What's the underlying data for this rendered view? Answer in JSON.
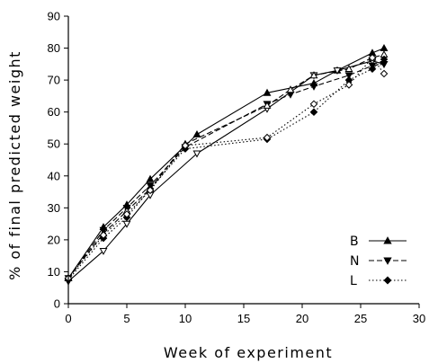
{
  "chart_data": {
    "type": "line",
    "xlabel": "Week of experiment",
    "ylabel": "% of final predicted weight",
    "xlim": [
      0,
      30
    ],
    "ylim": [
      0,
      90
    ],
    "x_ticks": [
      0,
      5,
      10,
      15,
      20,
      25,
      30
    ],
    "y_ticks": [
      0,
      10,
      20,
      30,
      40,
      50,
      60,
      70,
      80,
      90
    ],
    "grid": false,
    "legend_position": "lower-right",
    "series": [
      {
        "name": "B",
        "style": "solid",
        "markers": [
          {
            "shape": "triangle-up",
            "fill": "filled",
            "x": [
              0,
              3,
              5,
              7,
              11,
              17,
              21,
              23,
              26,
              27
            ],
            "y": [
              8,
              24,
              31,
              39,
              53,
              66,
              69,
              73,
              78.5,
              80
            ]
          },
          {
            "shape": "triangle-down",
            "fill": "open",
            "x": [
              0,
              3,
              5,
              7,
              11,
              17,
              21,
              23,
              26,
              27
            ],
            "y": [
              7,
              16.5,
              25,
              34,
              47,
              61,
              71.5,
              73,
              76,
              75
            ]
          }
        ]
      },
      {
        "name": "N",
        "style": "dashed",
        "markers": [
          {
            "shape": "triangle-down",
            "fill": "filled",
            "x": [
              0,
              3,
              5,
              7,
              10,
              17,
              19,
              21,
              24,
              26,
              27
            ],
            "y": [
              8,
              23,
              30,
              37,
              49,
              62.5,
              65.5,
              68,
              71.5,
              74.5,
              75
            ]
          },
          {
            "shape": "triangle-up",
            "fill": "open",
            "x": [
              0,
              3,
              5,
              7,
              10,
              17,
              19,
              21,
              24,
              26,
              27
            ],
            "y": [
              8,
              22,
              29,
              36,
              50,
              62,
              67,
              71.5,
              73.5,
              77,
              78
            ]
          }
        ]
      },
      {
        "name": "L",
        "style": "dotted",
        "markers": [
          {
            "shape": "diamond",
            "fill": "filled",
            "x": [
              0,
              3,
              5,
              7,
              10,
              17,
              21,
              24,
              26,
              27
            ],
            "y": [
              7.5,
              20.5,
              27,
              36,
              48.5,
              51.5,
              60,
              70,
              73.5,
              76.5
            ]
          },
          {
            "shape": "diamond",
            "fill": "open",
            "x": [
              0,
              3,
              5,
              7,
              10,
              17,
              21,
              24,
              26,
              27
            ],
            "y": [
              8,
              21.5,
              28,
              35.5,
              49.5,
              52,
              62.5,
              68.5,
              77,
              72
            ]
          }
        ]
      }
    ]
  }
}
